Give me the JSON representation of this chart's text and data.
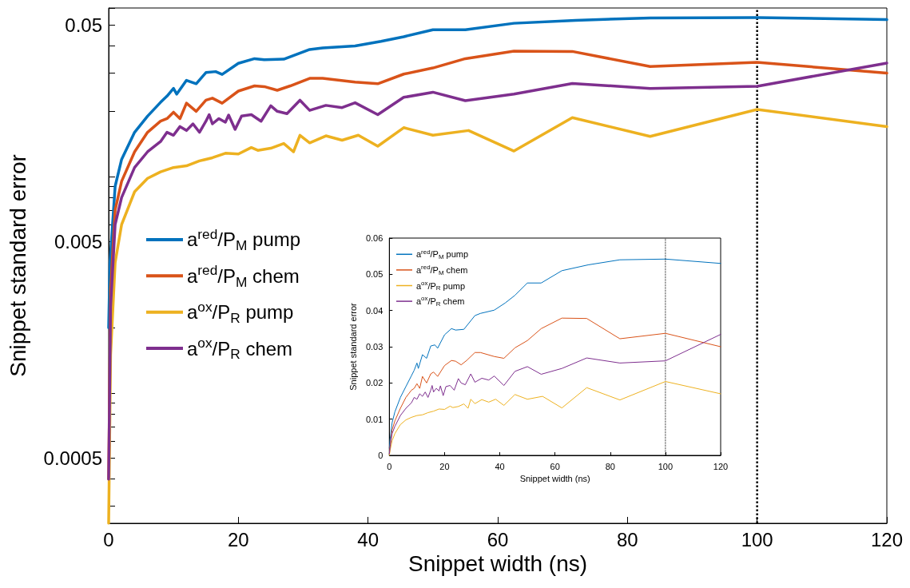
{
  "chart_data": [
    {
      "type": "line",
      "xlabel": "Snippet width (ns)",
      "ylabel": "Snippet standard error",
      "log": "y",
      "xlim": [
        0,
        120
      ],
      "xticks": [
        0,
        20,
        40,
        60,
        80,
        100,
        120
      ],
      "ylim": [
        0.00025,
        0.06
      ],
      "yticks": [
        {
          "value": 0.0003,
          "label": null
        },
        {
          "value": 0.0004,
          "label": null
        },
        0.0005,
        {
          "value": 0.0006,
          "label": null
        },
        {
          "value": 0.0007,
          "label": null
        },
        {
          "value": 0.0008,
          "label": null
        },
        {
          "value": 0.0009,
          "label": null
        },
        {
          "value": 0.001,
          "label": null
        },
        {
          "value": 0.002,
          "label": null
        },
        {
          "value": 0.003,
          "label": null
        },
        {
          "value": 0.004,
          "label": null
        },
        0.005,
        {
          "value": 0.006,
          "label": null
        },
        {
          "value": 0.007,
          "label": null
        },
        {
          "value": 0.008,
          "label": null
        },
        {
          "value": 0.009,
          "label": null
        },
        {
          "value": 0.01,
          "label": null
        },
        {
          "value": 0.02,
          "label": null
        },
        {
          "value": 0.03,
          "label": null
        },
        {
          "value": 0.04,
          "label": null
        },
        0.05,
        {
          "value": 0.06,
          "label": null
        }
      ],
      "legend": "left",
      "grid": false,
      "marker": "none",
      "line_style": "solid",
      "ref_lines": [
        {
          "axis": "x",
          "value": 100,
          "line_style": "dotted",
          "color": "#000000"
        }
      ],
      "series": [
        {
          "name": "a$^{red}$/P$_{M}$ pump",
          "color": "#0072bd",
          "x": [
            0,
            0.2,
            1,
            2,
            4,
            6,
            8,
            9,
            10,
            10.5,
            12,
            13.5,
            15,
            16.5,
            17.5,
            20,
            22.5,
            24,
            27,
            31,
            33,
            38,
            42,
            45.5,
            50,
            55,
            62.5,
            72,
            83.5,
            100,
            120
          ],
          "values": [
            0.002,
            0.004,
            0.009,
            0.012,
            0.016,
            0.019,
            0.022,
            0.0235,
            0.0255,
            0.024,
            0.0278,
            0.0268,
            0.0302,
            0.0305,
            0.0296,
            0.0333,
            0.035,
            0.0346,
            0.0348,
            0.0386,
            0.0392,
            0.0401,
            0.0421,
            0.0442,
            0.0476,
            0.0476,
            0.051,
            0.0526,
            0.054,
            0.0542,
            0.053
          ]
        },
        {
          "name": "a$^{red}$/P$_{M}$ chem",
          "color": "#d95319",
          "x": [
            0,
            0.3,
            1,
            2,
            4,
            6,
            8,
            9,
            10,
            11,
            12,
            13.5,
            15,
            16,
            17.5,
            20,
            22.5,
            24,
            26,
            28,
            31,
            33,
            38,
            41.5,
            45.5,
            50,
            55,
            62.5,
            71.5,
            83.5,
            100,
            120
          ],
          "values": [
            0.0004,
            0.003,
            0.007,
            0.0095,
            0.013,
            0.016,
            0.018,
            0.0185,
            0.0198,
            0.0185,
            0.0218,
            0.02,
            0.0225,
            0.023,
            0.0218,
            0.0248,
            0.0262,
            0.026,
            0.025,
            0.0262,
            0.0284,
            0.0284,
            0.0273,
            0.0268,
            0.0297,
            0.0317,
            0.035,
            0.0379,
            0.0378,
            0.0322,
            0.0337,
            0.03
          ]
        },
        {
          "name": "a$^{ox}$/P$_{R}$ pump",
          "color": "#edb120",
          "x": [
            0,
            0.3,
            1,
            2,
            4,
            6,
            8,
            10,
            12,
            14,
            16,
            18,
            20,
            22,
            23,
            25,
            27,
            28.5,
            29.5,
            31,
            33.5,
            36,
            38.5,
            41.5,
            45.5,
            50,
            55.5,
            62.5,
            71.5,
            83.5,
            100,
            120
          ],
          "values": [
            0.00025,
            0.0015,
            0.004,
            0.006,
            0.0085,
            0.0098,
            0.0105,
            0.011,
            0.0112,
            0.0118,
            0.0122,
            0.0128,
            0.0127,
            0.0136,
            0.0132,
            0.0135,
            0.0142,
            0.013,
            0.0155,
            0.0143,
            0.0154,
            0.0147,
            0.0155,
            0.0138,
            0.0168,
            0.0155,
            0.0163,
            0.0131,
            0.0187,
            0.0153,
            0.0204,
            0.017
          ]
        },
        {
          "name": "a$^{ox}$/P$_{R}$ chem",
          "color": "#7e2f8e",
          "x": [
            0,
            0.3,
            1,
            2,
            4,
            6,
            8,
            9,
            10,
            11,
            12,
            13,
            14,
            15,
            15.5,
            16,
            17,
            18,
            18.5,
            19.5,
            20.5,
            22,
            23.5,
            25,
            26,
            27.5,
            29.5,
            31,
            33.5,
            36,
            38,
            41.5,
            45.5,
            50,
            55,
            62.5,
            71.5,
            83.5,
            100,
            120
          ],
          "values": [
            0.0004,
            0.0025,
            0.006,
            0.008,
            0.011,
            0.013,
            0.0145,
            0.016,
            0.0155,
            0.017,
            0.0163,
            0.0175,
            0.016,
            0.018,
            0.0193,
            0.0175,
            0.0185,
            0.0178,
            0.0192,
            0.0165,
            0.019,
            0.0193,
            0.018,
            0.0212,
            0.02,
            0.0195,
            0.0225,
            0.0202,
            0.0213,
            0.0208,
            0.0219,
            0.0193,
            0.0232,
            0.0245,
            0.0224,
            0.024,
            0.0269,
            0.0255,
            0.0261,
            0.0334
          ]
        }
      ]
    },
    {
      "type": "line",
      "xlabel": "Snippet width (ns)",
      "ylabel": "Snippet standard error",
      "xlim": [
        0,
        120
      ],
      "xticks": [
        0,
        20,
        40,
        60,
        80,
        100,
        120
      ],
      "ylim": [
        0,
        0.06
      ],
      "yticks": [
        0,
        0.01,
        0.02,
        0.03,
        0.04,
        0.05,
        0.06
      ],
      "legend": "top left",
      "grid": false,
      "marker": "none",
      "line_style": "solid",
      "ref_lines": [
        {
          "axis": "x",
          "value": 100,
          "line_style": "dotted",
          "color": "#000000"
        }
      ],
      "series": [
        {
          "name": "a$^{red}$/P$_{M}$ pump",
          "color": "#0072bd",
          "x": [
            0,
            0.2,
            1,
            2,
            4,
            6,
            8,
            9,
            10,
            10.5,
            12,
            13.5,
            15,
            16.5,
            17.5,
            20,
            22.5,
            24,
            27,
            31,
            33,
            38,
            42,
            45.5,
            50,
            55,
            62.5,
            72,
            83.5,
            100,
            120
          ],
          "values": [
            0.002,
            0.004,
            0.009,
            0.012,
            0.016,
            0.019,
            0.022,
            0.0235,
            0.0255,
            0.024,
            0.0278,
            0.0268,
            0.0302,
            0.0305,
            0.0296,
            0.0333,
            0.035,
            0.0346,
            0.0348,
            0.0386,
            0.0392,
            0.0401,
            0.0421,
            0.0442,
            0.0476,
            0.0476,
            0.051,
            0.0526,
            0.054,
            0.0542,
            0.053
          ]
        },
        {
          "name": "a$^{red}$/P$_{M}$ chem",
          "color": "#d95319",
          "x": [
            0,
            0.3,
            1,
            2,
            4,
            6,
            8,
            9,
            10,
            11,
            12,
            13.5,
            15,
            16,
            17.5,
            20,
            22.5,
            24,
            26,
            28,
            31,
            33,
            38,
            41.5,
            45.5,
            50,
            55,
            62.5,
            71.5,
            83.5,
            100,
            120
          ],
          "values": [
            0.0004,
            0.003,
            0.007,
            0.0095,
            0.013,
            0.016,
            0.018,
            0.0185,
            0.0198,
            0.0185,
            0.0218,
            0.02,
            0.0225,
            0.023,
            0.0218,
            0.0248,
            0.0262,
            0.026,
            0.025,
            0.0262,
            0.0284,
            0.0284,
            0.0273,
            0.0268,
            0.0297,
            0.0317,
            0.035,
            0.0379,
            0.0378,
            0.0322,
            0.0337,
            0.03
          ]
        },
        {
          "name": "a$^{ox}$/P$_{R}$ pump",
          "color": "#edb120",
          "x": [
            0,
            0.3,
            1,
            2,
            4,
            6,
            8,
            10,
            12,
            14,
            16,
            18,
            20,
            22,
            23,
            25,
            27,
            28.5,
            29.5,
            31,
            33.5,
            36,
            38.5,
            41.5,
            45.5,
            50,
            55.5,
            62.5,
            71.5,
            83.5,
            100,
            120
          ],
          "values": [
            0,
            0.0015,
            0.004,
            0.006,
            0.0085,
            0.0098,
            0.0105,
            0.011,
            0.0112,
            0.0118,
            0.0122,
            0.0128,
            0.0127,
            0.0136,
            0.0132,
            0.0135,
            0.0142,
            0.013,
            0.0155,
            0.0143,
            0.0154,
            0.0147,
            0.0155,
            0.0138,
            0.0168,
            0.0155,
            0.0163,
            0.0131,
            0.0187,
            0.0153,
            0.0204,
            0.017
          ]
        },
        {
          "name": "a$^{ox}$/P$_{R}$ chem",
          "color": "#7e2f8e",
          "x": [
            0,
            0.3,
            1,
            2,
            4,
            6,
            8,
            9,
            10,
            11,
            12,
            13,
            14,
            15,
            15.5,
            16,
            17,
            18,
            18.5,
            19.5,
            20.5,
            22,
            23.5,
            25,
            26,
            27.5,
            29.5,
            31,
            33.5,
            36,
            38,
            41.5,
            45.5,
            50,
            55,
            62.5,
            71.5,
            83.5,
            100,
            120
          ],
          "values": [
            0.0004,
            0.0025,
            0.006,
            0.008,
            0.011,
            0.013,
            0.0145,
            0.016,
            0.0155,
            0.017,
            0.0163,
            0.0175,
            0.016,
            0.018,
            0.0193,
            0.0175,
            0.0185,
            0.0178,
            0.0192,
            0.0165,
            0.019,
            0.0193,
            0.018,
            0.0212,
            0.02,
            0.0195,
            0.0225,
            0.0202,
            0.0213,
            0.0208,
            0.0219,
            0.0193,
            0.0232,
            0.0245,
            0.0224,
            0.024,
            0.0269,
            0.0255,
            0.0261,
            0.0334
          ]
        }
      ]
    }
  ]
}
